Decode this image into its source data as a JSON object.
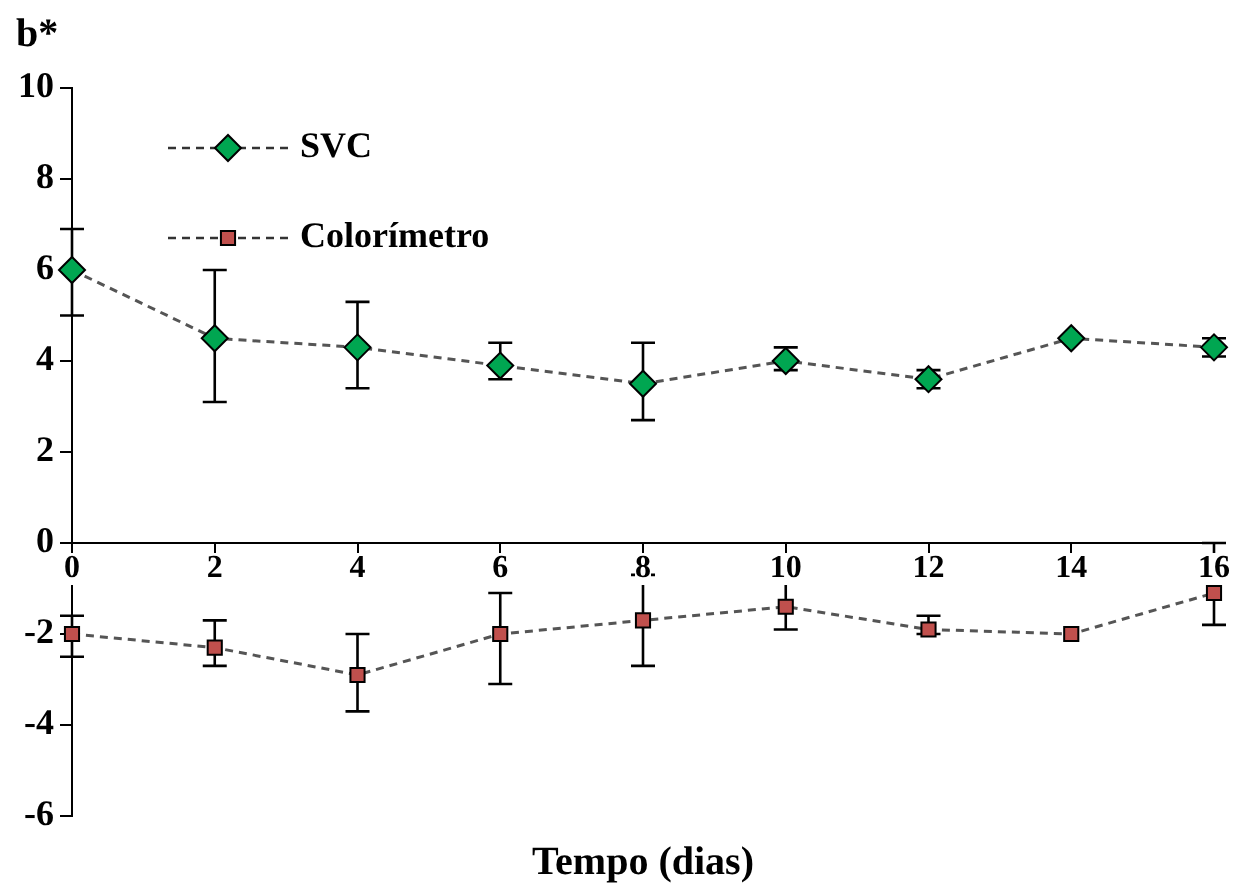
{
  "chart_data": {
    "type": "line",
    "ylabel": "b*",
    "xlabel": "Tempo (dias)",
    "x": [
      0,
      2,
      4,
      6,
      8,
      10,
      12,
      14,
      16
    ],
    "series": [
      {
        "name": "SVC",
        "color": "#00a651",
        "marker": "diamond",
        "values": [
          6.0,
          4.5,
          4.3,
          3.9,
          3.5,
          4.0,
          3.6,
          4.5,
          4.3
        ],
        "errors": [
          [
            5.0,
            6.9
          ],
          [
            3.1,
            6.0
          ],
          [
            3.4,
            5.3
          ],
          [
            3.6,
            4.4
          ],
          [
            2.7,
            4.4
          ],
          [
            3.8,
            4.3
          ],
          [
            3.4,
            3.8
          ],
          null,
          [
            4.1,
            4.5
          ]
        ]
      },
      {
        "name": "Colorímetro",
        "color": "#c0504d",
        "marker": "square",
        "values": [
          -2.0,
          -2.3,
          -2.9,
          -2.0,
          -1.7,
          -1.4,
          -1.9,
          -2.0,
          -1.1
        ],
        "errors": [
          [
            -2.5,
            -1.6
          ],
          [
            -2.7,
            -1.7
          ],
          [
            -3.7,
            -2.0
          ],
          [
            -3.1,
            -1.1
          ],
          [
            -2.7,
            -0.7
          ],
          [
            -1.9,
            -0.8
          ],
          [
            -2.0,
            -1.6
          ],
          null,
          [
            -1.8,
            0
          ]
        ]
      }
    ],
    "xlim": [
      0,
      16
    ],
    "xticks": [
      0,
      2,
      4,
      6,
      8,
      10,
      12,
      14,
      16
    ],
    "ylim": [
      -6,
      10
    ],
    "yticks": [
      -6,
      -4,
      -2,
      0,
      2,
      4,
      6,
      8,
      10
    ],
    "grid": false,
    "legend": "top left",
    "line_style": "dashed"
  }
}
